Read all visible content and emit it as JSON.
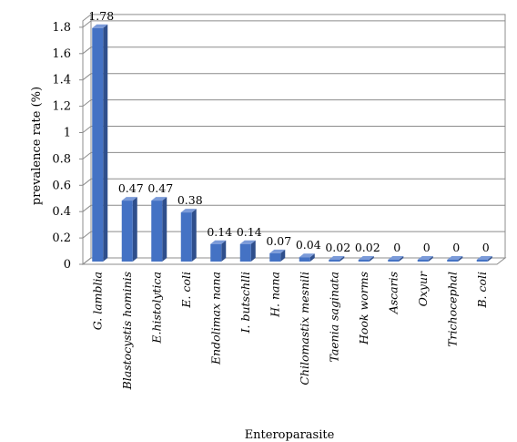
{
  "chart_data": {
    "type": "bar",
    "title": "",
    "xlabel": "Enteroparasite",
    "ylabel": "prevalence rate (%)",
    "ylim": [
      0,
      1.8
    ],
    "yticks": [
      "0",
      "0.2",
      "0.4",
      "0.6",
      "0.8",
      "1",
      "1.2",
      "1.4",
      "1.6",
      "1.8"
    ],
    "grid": true,
    "bar_color": "#4472c4",
    "categories": [
      "G. lamblia",
      "Blastocystis hominis",
      "E.histolytica",
      "E. coli",
      "Endolimax nana",
      "I. butschlli",
      "H. nana",
      "Chilomastix mesnili",
      "Taenia saginata",
      "Hook worms",
      "Ascaris",
      "Oxyur",
      "Trichocephal",
      "B. coli"
    ],
    "values": [
      1.78,
      0.47,
      0.47,
      0.38,
      0.14,
      0.14,
      0.07,
      0.04,
      0.02,
      0.02,
      0,
      0,
      0,
      0
    ],
    "data_labels": [
      "1.78",
      "0.47",
      "0.47",
      "0.38",
      "0.14",
      "0.14",
      "0.07",
      "0.04",
      "0.02",
      "0.02",
      "0",
      "0",
      "0",
      "0"
    ]
  }
}
